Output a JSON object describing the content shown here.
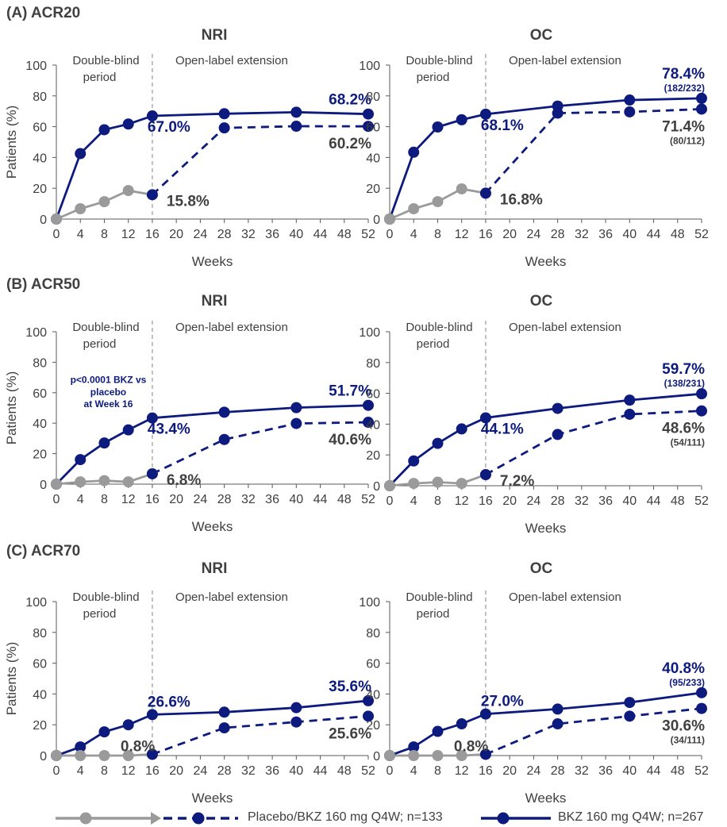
{
  "colors": {
    "bkz": "#0d1a7e",
    "placebo": "#9a9a9a",
    "axis": "#595959",
    "divider": "#a6a6a6",
    "text": "#404040"
  },
  "sections": [
    {
      "title": "(A) ACR20"
    },
    {
      "title": "(B) ACR50"
    },
    {
      "title": "(C) ACR70"
    }
  ],
  "legend": {
    "placebo": "Placebo/BKZ 160 mg Q4W; n=133",
    "bkz": "BKZ 160 mg Q4W; n=267"
  },
  "chart_data": [
    {
      "type": "line",
      "panel_title": "NRI",
      "xlabel": "Weeks",
      "ylabel": "Patients (%)",
      "x_ticks": [
        0,
        4,
        8,
        12,
        16,
        20,
        24,
        28,
        32,
        36,
        40,
        44,
        48,
        52
      ],
      "ylim": [
        0,
        100
      ],
      "y_ticks": [
        0,
        20,
        40,
        60,
        80,
        100
      ],
      "period_labels": {
        "double_blind": [
          "Double-blind",
          "period"
        ],
        "open_label": "Open-label extension"
      },
      "series": [
        {
          "name": "BKZ 160 mg Q4W; n=267",
          "style": "solid",
          "color": "#0d1a7e",
          "x": [
            0,
            4,
            8,
            12,
            16,
            28,
            40,
            52
          ],
          "y": [
            0,
            42.5,
            58,
            61.7,
            67,
            68.4,
            69.4,
            68.2
          ]
        },
        {
          "name": "Placebo",
          "style": "solid",
          "color": "#9a9a9a",
          "x": [
            0,
            4,
            8,
            12,
            16
          ],
          "y": [
            0,
            6.7,
            11.3,
            18.5,
            15.8
          ]
        },
        {
          "name": "BKZ 160 mg Q4W (from placebo)",
          "style": "dashed",
          "color": "#0d1a7e",
          "x": [
            16,
            28,
            40,
            52
          ],
          "y": [
            15.8,
            59.2,
            60.3,
            60.2
          ]
        }
      ],
      "annotations": [
        {
          "text": "67.0%",
          "color": "#0d1a7e",
          "x": 16,
          "y": 67.0
        },
        {
          "text": "68.2%",
          "color": "#0d1a7e",
          "x": 52,
          "y": 68.2
        },
        {
          "text": "60.2%",
          "color": "#404040",
          "x": 52,
          "y": 60.2
        },
        {
          "text": "15.8%",
          "color": "#404040",
          "x": 16,
          "y": 15.8
        }
      ]
    },
    {
      "type": "line",
      "panel_title": "OC",
      "xlabel": "Weeks",
      "ylabel": "",
      "x_ticks": [
        0,
        4,
        8,
        12,
        16,
        20,
        24,
        28,
        32,
        36,
        40,
        44,
        48,
        52
      ],
      "ylim": [
        0,
        100
      ],
      "y_ticks": [
        0,
        20,
        40,
        60,
        80,
        100
      ],
      "period_labels": {
        "double_blind": [
          "Double-blind",
          "period"
        ],
        "open_label": "Open-label extension"
      },
      "series": [
        {
          "name": "BKZ 160 mg Q4W; n=267",
          "style": "solid",
          "color": "#0d1a7e",
          "x": [
            0,
            4,
            8,
            12,
            16,
            28,
            40,
            52
          ],
          "y": [
            0,
            43.4,
            59.8,
            64.5,
            68.1,
            73.4,
            77.3,
            78.4
          ]
        },
        {
          "name": "Placebo",
          "style": "solid",
          "color": "#9a9a9a",
          "x": [
            0,
            4,
            8,
            12,
            16
          ],
          "y": [
            0,
            6.7,
            11.3,
            19.6,
            16.8
          ]
        },
        {
          "name": "BKZ 160 mg Q4W (from placebo)",
          "style": "dashed",
          "color": "#0d1a7e",
          "x": [
            16,
            28,
            40,
            52
          ],
          "y": [
            16.8,
            68.8,
            69.6,
            71.4
          ]
        }
      ],
      "annotations": [
        {
          "text": "68.1%",
          "color": "#0d1a7e",
          "x": 16,
          "y": 68.1
        },
        {
          "text": "78.4%",
          "color": "#0d1a7e",
          "x": 52,
          "y": 78.4,
          "sub": "(182/232)"
        },
        {
          "text": "71.4%",
          "color": "#404040",
          "x": 52,
          "y": 71.4,
          "sub": "(80/112)"
        },
        {
          "text": "16.8%",
          "color": "#404040",
          "x": 16,
          "y": 16.8
        }
      ]
    },
    {
      "type": "line",
      "panel_title": "NRI",
      "xlabel": "Weeks",
      "ylabel": "Patients (%)",
      "x_ticks": [
        0,
        4,
        8,
        12,
        16,
        20,
        24,
        28,
        32,
        36,
        40,
        44,
        48,
        52
      ],
      "ylim": [
        0,
        100
      ],
      "y_ticks": [
        0,
        20,
        40,
        60,
        80,
        100
      ],
      "period_labels": {
        "double_blind": [
          "Double-blind",
          "period"
        ],
        "open_label": "Open-label extension"
      },
      "pvalue_note": [
        "p<0.0001 BKZ vs",
        "placebo",
        "at Week 16"
      ],
      "series": [
        {
          "name": "BKZ 160 mg Q4W; n=267",
          "style": "solid",
          "color": "#0d1a7e",
          "x": [
            0,
            4,
            8,
            12,
            16,
            28,
            40,
            52
          ],
          "y": [
            0,
            16.1,
            27,
            35.6,
            43.4,
            47.2,
            50.2,
            51.7
          ]
        },
        {
          "name": "Placebo",
          "style": "solid",
          "color": "#9a9a9a",
          "x": [
            0,
            4,
            8,
            12,
            16
          ],
          "y": [
            0,
            1.5,
            2.3,
            1.5,
            6.8
          ]
        },
        {
          "name": "BKZ 160 mg Q4W (from placebo)",
          "style": "dashed",
          "color": "#0d1a7e",
          "x": [
            16,
            28,
            40,
            52
          ],
          "y": [
            6.8,
            29.3,
            39.8,
            40.6
          ]
        }
      ],
      "annotations": [
        {
          "text": "43.4%",
          "color": "#0d1a7e",
          "x": 16,
          "y": 43.4
        },
        {
          "text": "51.7%",
          "color": "#0d1a7e",
          "x": 52,
          "y": 51.7
        },
        {
          "text": "40.6%",
          "color": "#404040",
          "x": 52,
          "y": 40.6
        },
        {
          "text": "6.8%",
          "color": "#404040",
          "x": 16,
          "y": 6.8
        }
      ]
    },
    {
      "type": "line",
      "panel_title": "OC",
      "xlabel": "Weeks",
      "ylabel": "",
      "x_ticks": [
        0,
        4,
        8,
        12,
        16,
        20,
        24,
        28,
        32,
        36,
        40,
        44,
        48,
        52
      ],
      "ylim": [
        0,
        100
      ],
      "y_ticks": [
        0,
        20,
        40,
        60,
        80,
        100
      ],
      "period_labels": {
        "double_blind": [
          "Double-blind",
          "period"
        ],
        "open_label": "Open-label extension"
      },
      "series": [
        {
          "name": "BKZ 160 mg Q4W; n=267",
          "style": "solid",
          "color": "#0d1a7e",
          "x": [
            0,
            4,
            8,
            12,
            16,
            28,
            40,
            52
          ],
          "y": [
            0,
            16.1,
            27.5,
            36.9,
            44.1,
            50.2,
            55.6,
            59.7
          ]
        },
        {
          "name": "Placebo",
          "style": "solid",
          "color": "#9a9a9a",
          "x": [
            0,
            4,
            8,
            12,
            16
          ],
          "y": [
            0,
            1.5,
            2.3,
            1.5,
            7.2
          ]
        },
        {
          "name": "BKZ 160 mg Q4W (from placebo)",
          "style": "dashed",
          "color": "#0d1a7e",
          "x": [
            16,
            28,
            40,
            52
          ],
          "y": [
            7.2,
            33.3,
            46.4,
            48.6
          ]
        }
      ],
      "annotations": [
        {
          "text": "44.1%",
          "color": "#0d1a7e",
          "x": 16,
          "y": 44.1
        },
        {
          "text": "59.7%",
          "color": "#0d1a7e",
          "x": 52,
          "y": 59.7,
          "sub": "(138/231)"
        },
        {
          "text": "48.6%",
          "color": "#404040",
          "x": 52,
          "y": 48.6,
          "sub": "(54/111)"
        },
        {
          "text": "7.2%",
          "color": "#404040",
          "x": 16,
          "y": 7.2
        }
      ]
    },
    {
      "type": "line",
      "panel_title": "NRI",
      "xlabel": "Weeks",
      "ylabel": "Patients (%)",
      "x_ticks": [
        0,
        4,
        8,
        12,
        16,
        20,
        24,
        28,
        32,
        36,
        40,
        44,
        48,
        52
      ],
      "ylim": [
        0,
        100
      ],
      "y_ticks": [
        0,
        20,
        40,
        60,
        80,
        100
      ],
      "period_labels": {
        "double_blind": [
          "Double-blind",
          "period"
        ],
        "open_label": "Open-label extension"
      },
      "series": [
        {
          "name": "BKZ 160 mg Q4W; n=267",
          "style": "solid",
          "color": "#0d1a7e",
          "x": [
            0,
            4,
            8,
            12,
            16,
            28,
            40,
            52
          ],
          "y": [
            0,
            5.6,
            15.4,
            20,
            26.6,
            28.2,
            31.1,
            35.6
          ]
        },
        {
          "name": "Placebo",
          "style": "solid",
          "color": "#9a9a9a",
          "x": [
            0,
            4,
            8,
            12,
            16
          ],
          "y": [
            0,
            0,
            0,
            0,
            0.8
          ]
        },
        {
          "name": "BKZ 160 mg Q4W (from placebo)",
          "style": "dashed",
          "color": "#0d1a7e",
          "x": [
            16,
            28,
            40,
            52
          ],
          "y": [
            0.8,
            18,
            21.8,
            25.6
          ]
        }
      ],
      "annotations": [
        {
          "text": "26.6%",
          "color": "#0d1a7e",
          "x": 16,
          "y": 26.6
        },
        {
          "text": "35.6%",
          "color": "#0d1a7e",
          "x": 52,
          "y": 35.6
        },
        {
          "text": "25.6%",
          "color": "#404040",
          "x": 52,
          "y": 25.6
        },
        {
          "text": "0.8%",
          "color": "#404040",
          "x": 16,
          "y": 0.8
        }
      ]
    },
    {
      "type": "line",
      "panel_title": "OC",
      "xlabel": "Weeks",
      "ylabel": "",
      "x_ticks": [
        0,
        4,
        8,
        12,
        16,
        20,
        24,
        28,
        32,
        36,
        40,
        44,
        48,
        52
      ],
      "ylim": [
        0,
        100
      ],
      "y_ticks": [
        0,
        20,
        40,
        60,
        80,
        100
      ],
      "period_labels": {
        "double_blind": [
          "Double-blind",
          "period"
        ],
        "open_label": "Open-label extension"
      },
      "series": [
        {
          "name": "BKZ 160 mg Q4W; n=267",
          "style": "solid",
          "color": "#0d1a7e",
          "x": [
            0,
            4,
            8,
            12,
            16,
            28,
            40,
            52
          ],
          "y": [
            0,
            5.6,
            15.7,
            20.6,
            27,
            30.2,
            34.5,
            40.8
          ]
        },
        {
          "name": "Placebo",
          "style": "solid",
          "color": "#9a9a9a",
          "x": [
            0,
            4,
            8,
            12,
            16
          ],
          "y": [
            0,
            0,
            0,
            0,
            0.8
          ]
        },
        {
          "name": "BKZ 160 mg Q4W (from placebo)",
          "style": "dashed",
          "color": "#0d1a7e",
          "x": [
            16,
            28,
            40,
            52
          ],
          "y": [
            0.8,
            20.6,
            25.6,
            30.6
          ]
        }
      ],
      "annotations": [
        {
          "text": "27.0%",
          "color": "#0d1a7e",
          "x": 16,
          "y": 27.0
        },
        {
          "text": "40.8%",
          "color": "#0d1a7e",
          "x": 52,
          "y": 40.8,
          "sub": "(95/233)"
        },
        {
          "text": "30.6%",
          "color": "#404040",
          "x": 52,
          "y": 30.6,
          "sub": "(34/111)"
        },
        {
          "text": "0.8%",
          "color": "#404040",
          "x": 16,
          "y": 0.8
        }
      ]
    }
  ]
}
